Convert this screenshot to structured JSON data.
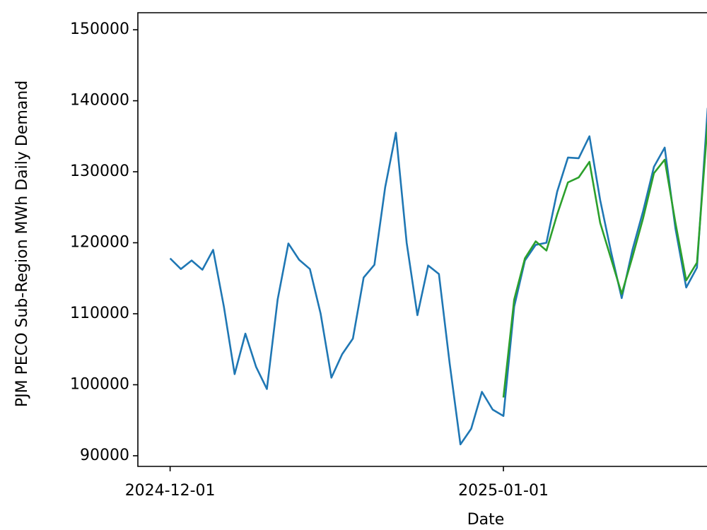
{
  "chart_data": {
    "type": "line",
    "y_label": "PJM PECO Sub-Region MWh Daily Demand",
    "x_label": "Date",
    "xlim": [
      "2024-11-28",
      "2025-01-20"
    ],
    "xticks": [
      "2024-12-01",
      "2025-01-01"
    ],
    "ylim": [
      88500,
      152400
    ],
    "yticks": [
      90000,
      100000,
      110000,
      120000,
      130000,
      140000,
      150000
    ],
    "grid": false,
    "series": [
      {
        "color": "#1f77b4",
        "x": [
          "2024-12-01",
          "2024-12-02",
          "2024-12-03",
          "2024-12-04",
          "2024-12-05",
          "2024-12-06",
          "2024-12-07",
          "2024-12-08",
          "2024-12-09",
          "2024-12-10",
          "2024-12-11",
          "2024-12-12",
          "2024-12-13",
          "2024-12-14",
          "2024-12-15",
          "2024-12-16",
          "2024-12-17",
          "2024-12-18",
          "2024-12-19",
          "2024-12-20",
          "2024-12-21",
          "2024-12-22",
          "2024-12-23",
          "2024-12-24",
          "2024-12-25",
          "2024-12-26",
          "2024-12-27",
          "2024-12-28",
          "2024-12-29",
          "2024-12-30",
          "2024-12-31",
          "2025-01-01",
          "2025-01-02",
          "2025-01-03",
          "2025-01-04",
          "2025-01-05",
          "2025-01-06",
          "2025-01-07",
          "2025-01-08",
          "2025-01-09",
          "2025-01-10",
          "2025-01-11",
          "2025-01-12",
          "2025-01-13",
          "2025-01-14",
          "2025-01-15",
          "2025-01-16",
          "2025-01-17",
          "2025-01-18",
          "2025-01-19",
          "2025-01-20"
        ],
        "values": [
          117800,
          116300,
          117500,
          116200,
          119000,
          111000,
          101500,
          107200,
          102500,
          99400,
          112000,
          119900,
          117600,
          116300,
          110000,
          101000,
          104300,
          106500,
          115100,
          116900,
          127800,
          135500,
          120000,
          109800,
          116800,
          115600,
          103000,
          91600,
          93800,
          99000,
          96500,
          95600,
          111000,
          117500,
          119700,
          120000,
          127200,
          132000,
          131900,
          135000,
          126000,
          118800,
          112200,
          119000,
          124500,
          130700,
          133400,
          122000,
          113700,
          116500,
          139000
        ]
      },
      {
        "color": "#2ca02c",
        "x": [
          "2025-01-01",
          "2025-01-02",
          "2025-01-03",
          "2025-01-04",
          "2025-01-05",
          "2025-01-06",
          "2025-01-07",
          "2025-01-08",
          "2025-01-09",
          "2025-01-10",
          "2025-01-11",
          "2025-01-12",
          "2025-01-13",
          "2025-01-14",
          "2025-01-15",
          "2025-01-16",
          "2025-01-17",
          "2025-01-18",
          "2025-01-19",
          "2025-01-20"
        ],
        "values": [
          98200,
          112000,
          117800,
          120200,
          118900,
          124000,
          128500,
          129200,
          131400,
          122800,
          117800,
          112800,
          118000,
          123500,
          129800,
          131700,
          122800,
          114700,
          117200,
          137000
        ]
      }
    ]
  }
}
